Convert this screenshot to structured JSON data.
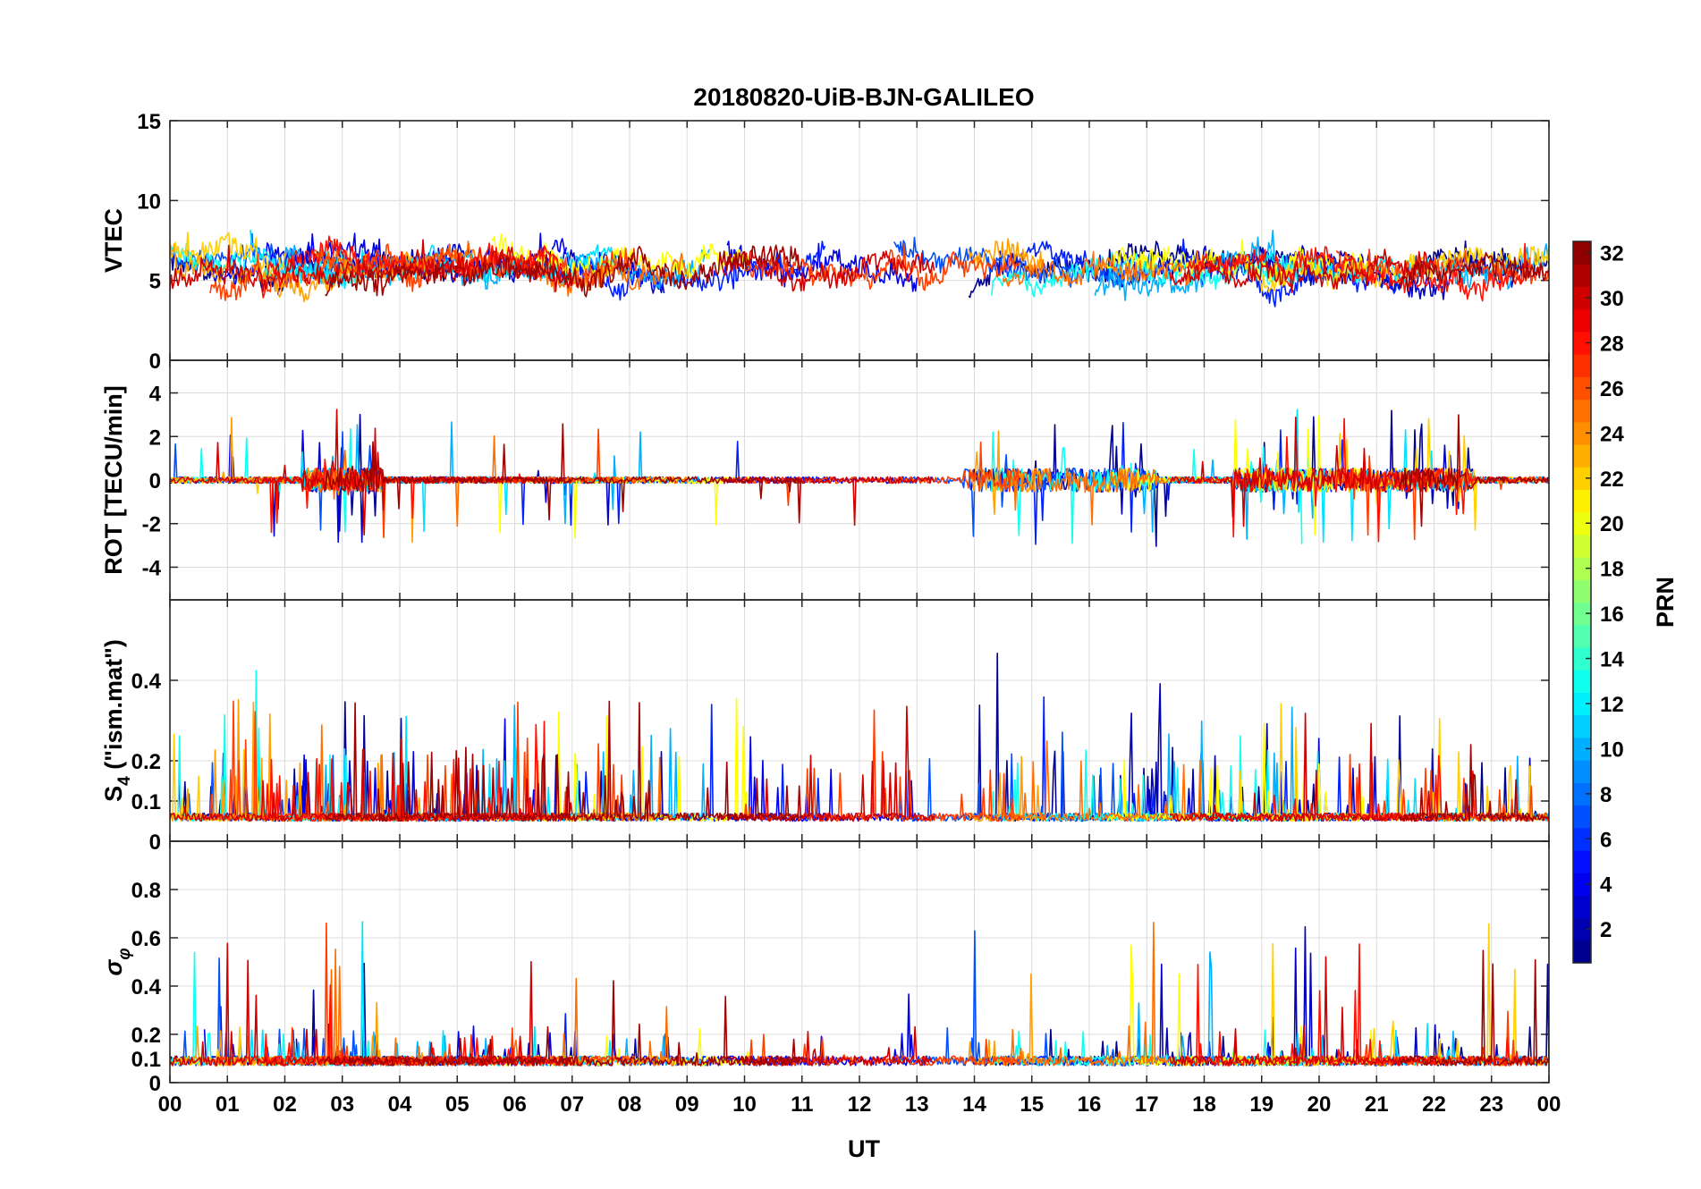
{
  "chart_data": {
    "type": "line",
    "title": "20180820-UiB-BJN-GALILEO",
    "xlabel": "UT",
    "x_range_hours": [
      0,
      24
    ],
    "x_tick_labels": [
      "00",
      "01",
      "02",
      "03",
      "04",
      "05",
      "06",
      "07",
      "08",
      "09",
      "10",
      "11",
      "12",
      "13",
      "14",
      "15",
      "16",
      "17",
      "18",
      "19",
      "20",
      "21",
      "22",
      "23",
      "00"
    ],
    "grid": true,
    "series_colormap": "jet",
    "panels": [
      {
        "id": "vtec",
        "ylabel": "VTEC",
        "ylim": [
          0,
          15
        ],
        "yticks": [
          0,
          5,
          10,
          15
        ],
        "ytick_labels": [
          "0",
          "5",
          "10",
          "15"
        ],
        "baseline": 5.8,
        "spread": 1.5,
        "spike_mag": 2.0
      },
      {
        "id": "rot",
        "ylabel": "ROT [TECU/min]",
        "ylim": [
          -5.5,
          5.5
        ],
        "yticks": [
          -4,
          -2,
          0,
          2,
          4
        ],
        "ytick_labels": [
          "-4",
          "-2",
          "0",
          "2",
          "4"
        ],
        "baseline": 0.0,
        "spread": 0.25,
        "spike_mag": 4.5
      },
      {
        "id": "s4",
        "ylabel": "S4 (\"ism.mat\")",
        "ylabel_main": "S",
        "ylabel_sub": "4",
        "ylabel_rest": " (\"ism.mat\")",
        "ylim": [
          0,
          0.6
        ],
        "yticks": [
          0,
          0.1,
          0.2,
          0.4
        ],
        "ytick_labels": [
          "0",
          "0.1",
          "0.2",
          "0.4"
        ],
        "baseline": 0.05,
        "spread": 0.02,
        "spike_mag": 0.3
      },
      {
        "id": "sigma_phi",
        "ylabel": "σφ",
        "ylabel_main": "σ",
        "ylabel_sub": "φ",
        "ylim": [
          0,
          1
        ],
        "yticks": [
          0,
          0.1,
          0.2,
          0.4,
          0.6,
          0.8
        ],
        "ytick_labels": [
          "0",
          "0.1",
          "0.2",
          "0.4",
          "0.6",
          "0.8"
        ],
        "baseline": 0.09,
        "spread": 0.02,
        "spike_mag": 0.6
      }
    ],
    "colorbar": {
      "label": "PRN",
      "range": [
        1,
        32
      ],
      "ticks": [
        2,
        4,
        6,
        8,
        10,
        12,
        14,
        16,
        18,
        20,
        22,
        24,
        26,
        28,
        30,
        32
      ],
      "tick_labels": [
        "2",
        "4",
        "6",
        "8",
        "10",
        "12",
        "14",
        "16",
        "18",
        "20",
        "22",
        "24",
        "26",
        "28",
        "30",
        "32"
      ]
    },
    "series": [
      {
        "prn": 1,
        "color": "#00008f",
        "spans": [
          [
            0.0,
            5.0
          ],
          [
            13.9,
            24.0
          ]
        ]
      },
      {
        "prn": 2,
        "color": "#0000bf",
        "spans": [
          [
            2.2,
            8.6
          ],
          [
            16.4,
            23.4
          ]
        ]
      },
      {
        "prn": 3,
        "color": "#0000ef",
        "spans": [
          [
            0.6,
            6.9
          ],
          [
            9.7,
            13.0
          ]
        ]
      },
      {
        "prn": 4,
        "color": "#0020ff",
        "spans": [
          [
            5.6,
            11.4
          ],
          [
            14.4,
            21.4
          ]
        ]
      },
      {
        "prn": 5,
        "color": "#0050ff",
        "spans": [
          [
            0.0,
            3.6
          ],
          [
            12.6,
            17.2
          ]
        ]
      },
      {
        "prn": 7,
        "color": "#00b0ff",
        "spans": [
          [
            2.0,
            9.4
          ],
          [
            16.1,
            20.1
          ],
          [
            22.0,
            24.0
          ]
        ]
      },
      {
        "prn": 9,
        "color": "#10ffef",
        "spans": [
          [
            0.0,
            3.5
          ],
          [
            14.3,
            19.7
          ]
        ]
      },
      {
        "prn": 11,
        "color": "#00e0ff",
        "spans": [
          [
            1.4,
            7.8
          ],
          [
            19.0,
            22.6
          ]
        ]
      },
      {
        "prn": 19,
        "color": "#ffff00",
        "spans": [
          [
            5.6,
            10.1
          ],
          [
            16.3,
            21.0
          ]
        ]
      },
      {
        "prn": 21,
        "color": "#ffcf00",
        "spans": [
          [
            0.0,
            2.0
          ],
          [
            18.6,
            24.0
          ]
        ]
      },
      {
        "prn": 22,
        "color": "#ff9f00",
        "spans": [
          [
            0.0,
            4.6
          ],
          [
            13.9,
            15.2
          ]
        ]
      },
      {
        "prn": 24,
        "color": "#ff6f00",
        "spans": [
          [
            2.5,
            9.0
          ],
          [
            14.5,
            18.0
          ]
        ]
      },
      {
        "prn": 26,
        "color": "#ff3f00",
        "spans": [
          [
            0.7,
            8.1
          ],
          [
            10.0,
            14.8
          ],
          [
            20.3,
            24.0
          ]
        ]
      },
      {
        "prn": 27,
        "color": "#ff1000",
        "spans": [
          [
            1.6,
            6.8
          ],
          [
            17.7,
            23.7
          ]
        ]
      },
      {
        "prn": 30,
        "color": "#cf0000",
        "spans": [
          [
            0.0,
            7.0
          ],
          [
            9.6,
            13.3
          ],
          [
            17.4,
            22.0
          ]
        ]
      },
      {
        "prn": 31,
        "color": "#9f0000",
        "spans": [
          [
            2.7,
            11.0
          ],
          [
            21.4,
            24.0
          ]
        ]
      }
    ]
  }
}
